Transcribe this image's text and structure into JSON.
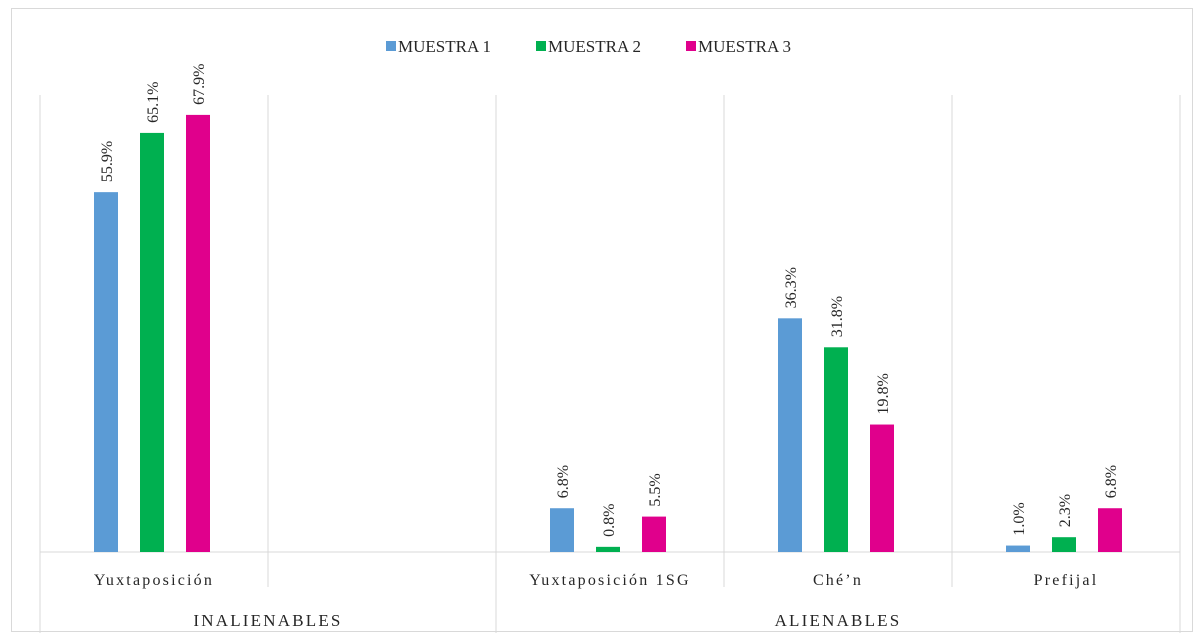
{
  "chart_data": {
    "type": "bar",
    "title": "",
    "xlabel": "",
    "ylabel": "",
    "ylim": [
      0,
      80
    ],
    "grid": false,
    "legend": "top",
    "groups": [
      {
        "label": "INALIENABLES",
        "categories": [
          "Yuxtaposición",
          ""
        ]
      },
      {
        "label": "ALIENABLES",
        "categories": [
          "Yuxtaposición 1SG",
          "Ché’n",
          "Prefijal"
        ]
      }
    ],
    "categories": [
      "Yuxtaposición",
      "",
      "Yuxtaposición 1SG",
      "Ché’n",
      "Prefijal"
    ],
    "series": [
      {
        "name": "MUESTRA 1",
        "color": "#5b9bd5",
        "values": [
          55.9,
          null,
          6.8,
          36.3,
          1.0
        ],
        "labels": [
          "55.9%",
          "",
          "6.8%",
          "36.3%",
          "1.0%"
        ]
      },
      {
        "name": "MUESTRA 2",
        "color": "#00b050",
        "values": [
          65.1,
          null,
          0.8,
          31.8,
          2.3
        ],
        "labels": [
          "65.1%",
          "",
          "0.8%",
          "31.8%",
          "2.3%"
        ]
      },
      {
        "name": "MUESTRA 3",
        "color": "#e0008c",
        "values": [
          67.9,
          null,
          5.5,
          19.8,
          6.8
        ],
        "labels": [
          "67.9%",
          "",
          "5.5%",
          "19.8%",
          "6.8%"
        ]
      }
    ]
  }
}
